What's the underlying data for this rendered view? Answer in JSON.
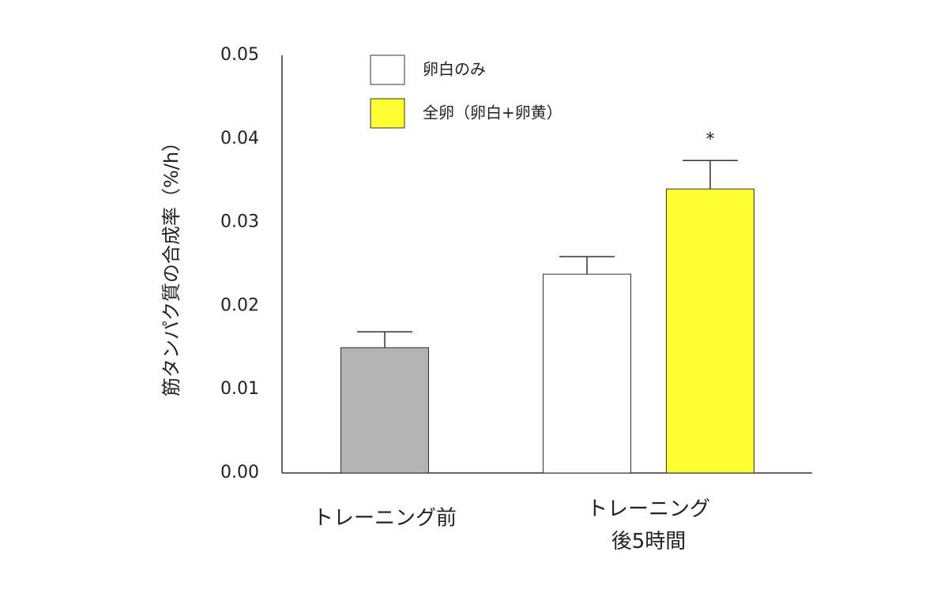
{
  "chart_data": {
    "type": "bar",
    "y_label": "筋タンパク質の合成率（%/h）",
    "categories": [
      "トレーニング前",
      "トレーニング\n後5時間"
    ],
    "series": [
      {
        "color": "#b3b3b3",
        "values": [
          0.015,
          null
        ],
        "errors": [
          0.0019,
          null
        ]
      },
      {
        "name": "卵白のみ",
        "color": "#ffffff",
        "values": [
          null,
          0.0238
        ],
        "errors": [
          null,
          0.0021
        ]
      },
      {
        "name": "全卵（卵白+卵黄）",
        "color": "#ffff33",
        "values": [
          null,
          0.034
        ],
        "errors": [
          null,
          0.0034
        ],
        "marks": [
          null,
          "*"
        ]
      }
    ],
    "ylim": [
      0,
      0.05
    ],
    "yticks": [
      {
        "value": 0,
        "label": "0.00"
      },
      {
        "value": 0.01,
        "label": "0.01"
      },
      {
        "value": 0.02,
        "label": "0.02"
      },
      {
        "value": 0.03,
        "label": "0.03"
      },
      {
        "value": 0.04,
        "label": "0.04"
      },
      {
        "value": 0.05,
        "label": "0.05"
      }
    ],
    "grid": false,
    "legend": "top"
  }
}
